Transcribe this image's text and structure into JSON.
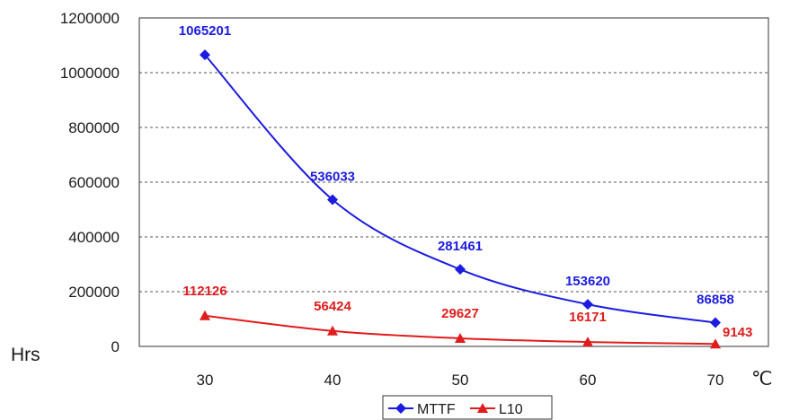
{
  "chart_data": {
    "type": "line",
    "x": [
      30,
      40,
      50,
      60,
      70
    ],
    "x_tick_labels": [
      "30",
      "40",
      "50",
      "60",
      "70"
    ],
    "ylim": [
      0,
      1200000
    ],
    "y_ticks": [
      0,
      200000,
      400000,
      600000,
      800000,
      1000000,
      1200000
    ],
    "y_tick_labels": [
      "0",
      "200000",
      "400000",
      "600000",
      "800000",
      "1000000",
      "1200000"
    ],
    "ylabel": "Hrs",
    "xunit": "℃",
    "grid": "horizontal dashed",
    "legend_position": "bottom",
    "series": [
      {
        "name": "MTTF",
        "color": "#1c1ce0",
        "marker": "diamond",
        "values": [
          1065201,
          536033,
          281461,
          153620,
          86858
        ],
        "labels": [
          "1065201",
          "536033",
          "281461",
          "153620",
          "86858"
        ]
      },
      {
        "name": "L10",
        "color": "#e01c1c",
        "marker": "triangle",
        "values": [
          112126,
          56424,
          29627,
          16171,
          9143
        ],
        "labels": [
          "112126",
          "56424",
          "29627",
          "16171",
          "9143"
        ]
      }
    ]
  }
}
